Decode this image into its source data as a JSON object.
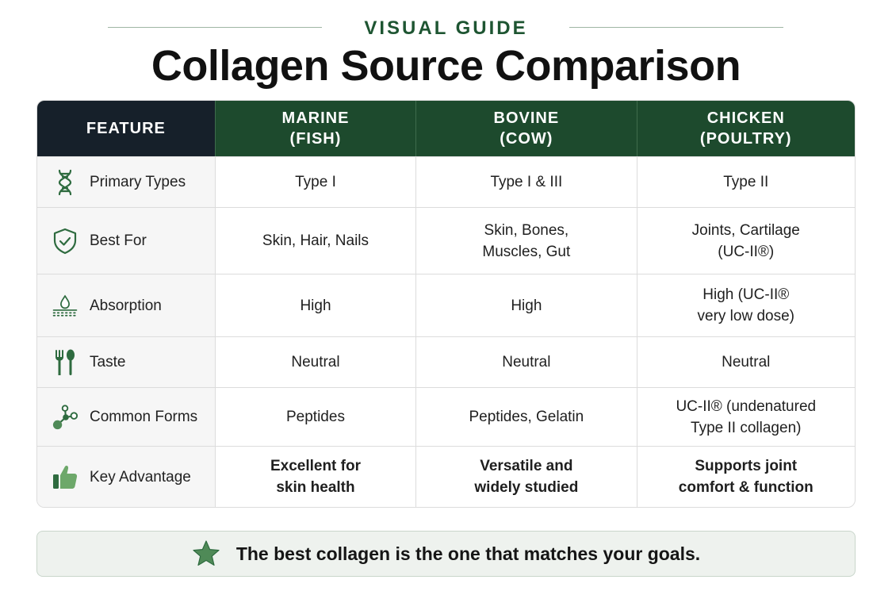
{
  "eyebrow": "VISUAL GUIDE",
  "title": "Collagen Source Comparison",
  "colors": {
    "dark_header": "#16202a",
    "green_header": "#1d4a2d",
    "icon_green": "#2e6b3f",
    "accent_light": "#6da86a"
  },
  "table": {
    "headers": [
      "FEATURE",
      "MARINE\n(FISH)",
      "BOVINE\n(COW)",
      "CHICKEN\n(POULTRY)"
    ],
    "rows": [
      {
        "icon": "dna-icon",
        "label": "Primary Types",
        "values": [
          "Type I",
          "Type I & III",
          "Type II"
        ]
      },
      {
        "icon": "shield-check-icon",
        "label": "Best For",
        "values": [
          "Skin, Hair, Nails",
          "Skin, Bones,\nMuscles, Gut",
          "Joints, Cartilage\n(UC-II®)"
        ]
      },
      {
        "icon": "droplet-icon",
        "label": "Absorption",
        "values": [
          "High",
          "High",
          "High (UC-II®\nvery low dose)"
        ]
      },
      {
        "icon": "fork-spoon-icon",
        "label": "Taste",
        "values": [
          "Neutral",
          "Neutral",
          "Neutral"
        ]
      },
      {
        "icon": "molecule-icon",
        "label": "Common Forms",
        "values": [
          "Peptides",
          "Peptides, Gelatin",
          "UC-II® (undenatured\nType II collagen)"
        ]
      },
      {
        "icon": "thumbs-up-icon",
        "label": "Key Advantage",
        "values": [
          "Excellent for\nskin health",
          "Versatile and\nwidely studied",
          "Supports joint\ncomfort & function"
        ]
      }
    ]
  },
  "banner": {
    "icon": "star-icon",
    "text": "The best collagen is the one that matches your goals."
  }
}
